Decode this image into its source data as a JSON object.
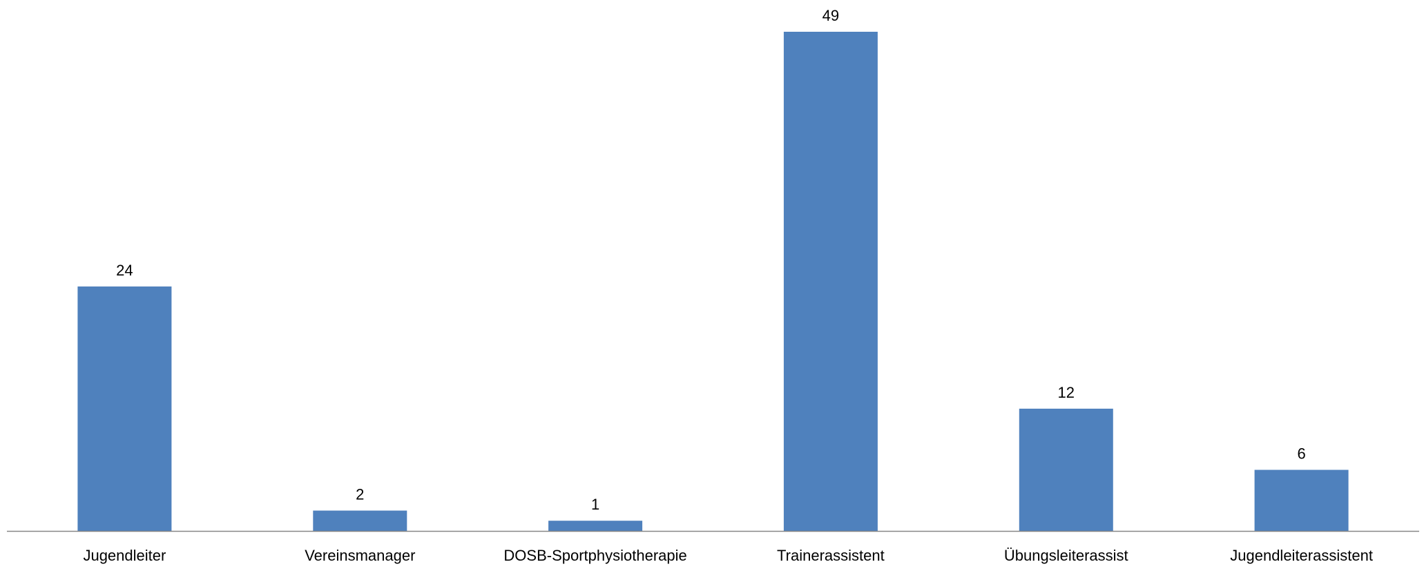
{
  "chart_data": {
    "type": "bar",
    "title": "",
    "xlabel": "",
    "ylabel": "",
    "categories": [
      "Jugendleiter",
      "Vereinsmanager",
      "DOSB-Sportphysiotherapie",
      "Trainerassistent",
      "Übungsleiterassist",
      "Jugendleiterassistent"
    ],
    "values": [
      24,
      2,
      1,
      49,
      12,
      6
    ],
    "data_labels": [
      "24",
      "2",
      "1",
      "49",
      "12",
      "6"
    ],
    "ylim": [
      0,
      49
    ],
    "grid": false,
    "legend": "none",
    "y_axis_visible": false,
    "colors": {
      "bar": "#4F81BD",
      "axis": "#868686",
      "text": "#000000",
      "background": "#FFFFFF"
    }
  }
}
